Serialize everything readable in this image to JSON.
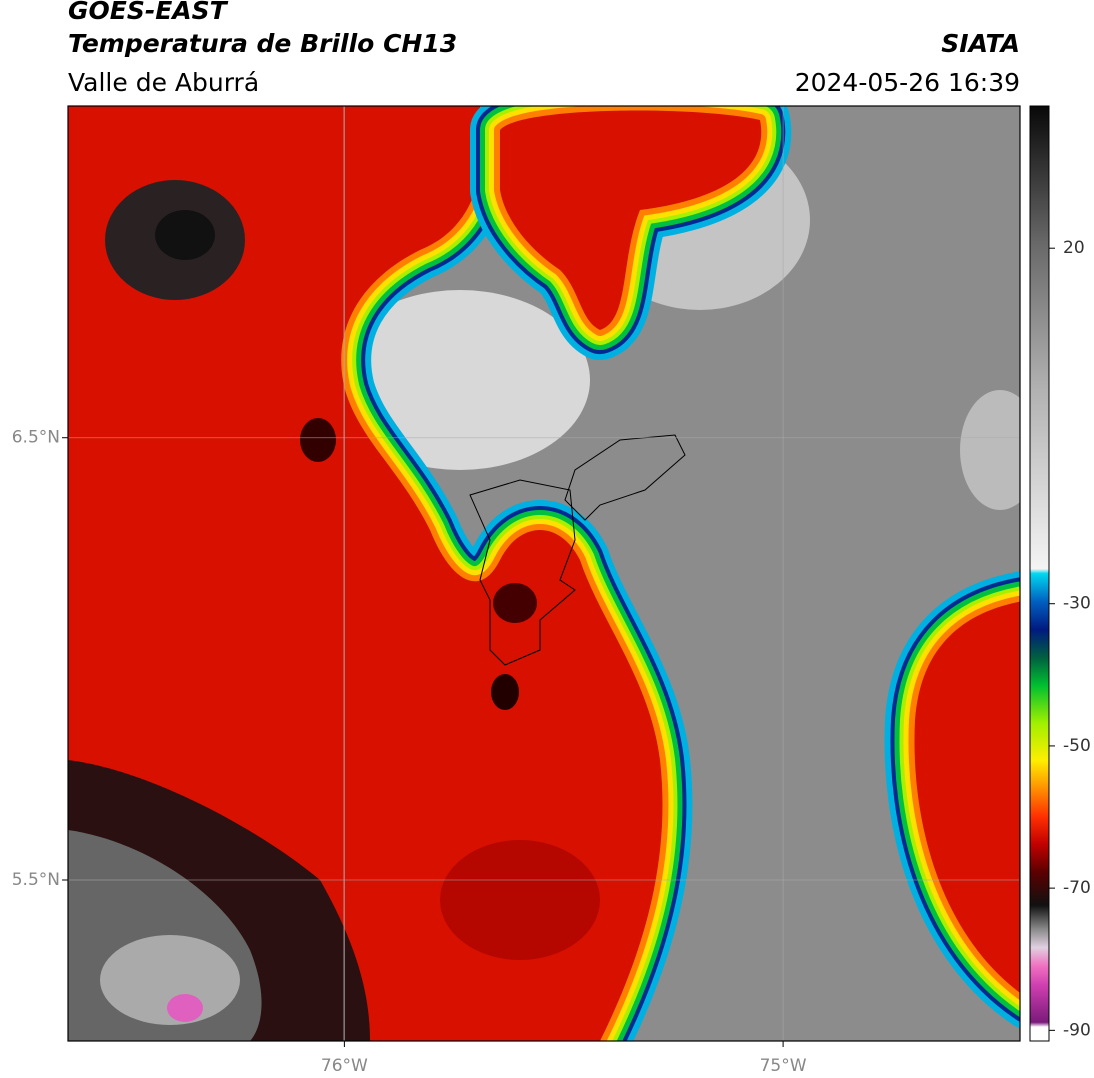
{
  "header": {
    "title": "GOES-EAST",
    "subtitle": "Temperatura de Brillo CH13",
    "region": "Valle de Aburrá",
    "source": "SIATA",
    "datetime": "2024-05-26 16:39"
  },
  "map": {
    "xlim": [
      -76.63,
      -74.46
    ],
    "ylim": [
      5.136,
      7.25
    ],
    "xticks": [
      {
        "value": -76,
        "label": "76°W"
      },
      {
        "value": -75,
        "label": "75°W"
      }
    ],
    "yticks": [
      {
        "value": 5.5,
        "label": "5.5°N"
      },
      {
        "value": 6.5,
        "label": "6.5°N"
      }
    ]
  },
  "colorbar": {
    "clim": [
      -91.5,
      40
    ],
    "ticks": [
      20,
      -30,
      -50,
      -70,
      -90
    ]
  }
}
